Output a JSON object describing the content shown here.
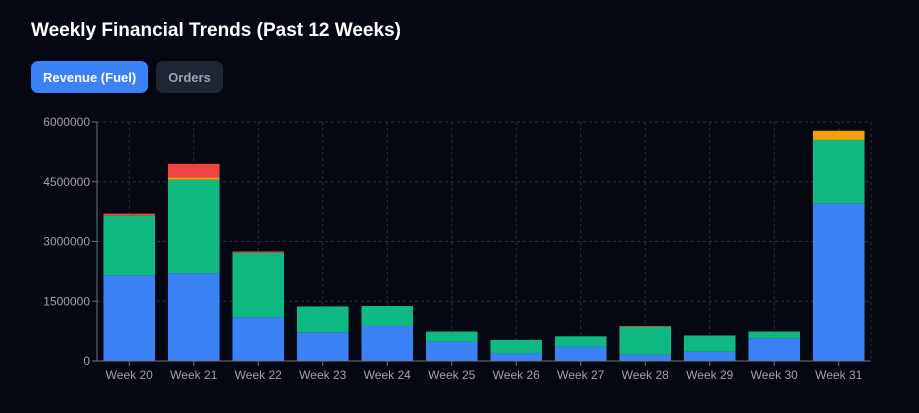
{
  "title": "Weekly Financial Trends (Past 12 Weeks)",
  "tabs": [
    {
      "label": "Revenue (Fuel)",
      "active": true
    },
    {
      "label": "Orders",
      "active": false
    }
  ],
  "colors": {
    "background": "#050810",
    "grid": "#2a3140",
    "axis": "#6b7280",
    "tick_text": "#9ca3af",
    "active_tab": "#3b82f6",
    "inactive_tab": "#1f2633"
  },
  "chart_data": {
    "type": "bar",
    "stacked": true,
    "title": "",
    "xlabel": "",
    "ylabel": "",
    "ylim": [
      0,
      6000000
    ],
    "yticks": [
      "0",
      "1500000",
      "3000000",
      "4500000",
      "6000000"
    ],
    "grid": true,
    "categories": [
      "Week 20",
      "Week 21",
      "Week 22",
      "Week 23",
      "Week 24",
      "Week 25",
      "Week 26",
      "Week 27",
      "Week 28",
      "Week 29",
      "Week 30",
      "Week 31"
    ],
    "series": [
      {
        "color": "#3b82f6",
        "values": [
          2150000,
          2200000,
          1100000,
          720000,
          880000,
          480000,
          190000,
          360000,
          160000,
          230000,
          570000,
          3950000
        ]
      },
      {
        "color": "#10b981",
        "values": [
          1500000,
          2350000,
          1620000,
          650000,
          500000,
          260000,
          340000,
          260000,
          700000,
          410000,
          170000,
          1600000
        ]
      },
      {
        "color": "#f59e0b",
        "values": [
          0,
          60000,
          0,
          0,
          0,
          0,
          0,
          0,
          0,
          0,
          0,
          230000
        ]
      },
      {
        "color": "#ef4444",
        "values": [
          50000,
          340000,
          30000,
          0,
          0,
          0,
          0,
          0,
          20000,
          0,
          0,
          0
        ]
      }
    ]
  }
}
